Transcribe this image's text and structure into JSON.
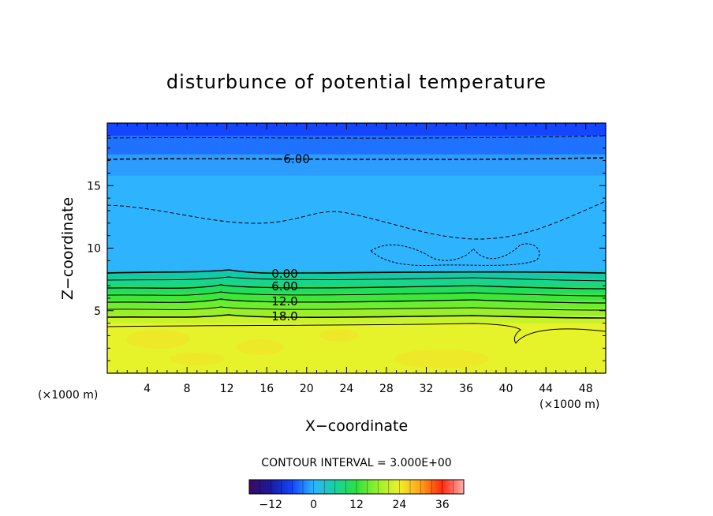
{
  "chart_data": {
    "type": "heatmap",
    "title": "disturbunce of potential temperature",
    "xlabel": "X−coordinate",
    "ylabel": "Z−coordinate",
    "x_unit_left": "(×1000 m)",
    "x_unit_right": "(×1000 m)",
    "xlim": [
      0,
      50
    ],
    "ylim": [
      0,
      20
    ],
    "x_ticks": [
      4,
      8,
      12,
      16,
      20,
      24,
      28,
      32,
      36,
      40,
      44,
      48
    ],
    "y_ticks": [
      5,
      10,
      15
    ],
    "contour_interval_text": "CONTOUR INTERVAL = 3.000E+00",
    "contour_interval": 3,
    "contour_labels": [
      {
        "text": "−6.00",
        "x": 18.5,
        "z": 17.2
      },
      {
        "text": "0.00",
        "x": 17.8,
        "z": 8.0
      },
      {
        "text": "6.00",
        "x": 17.8,
        "z": 7.0
      },
      {
        "text": "12.0",
        "x": 17.8,
        "z": 5.8
      },
      {
        "text": "18.0",
        "x": 17.8,
        "z": 4.6
      }
    ],
    "level_bands": [
      {
        "z_top": 20.0,
        "z_bottom": 19.0,
        "value": -18,
        "color": "#1446ff"
      },
      {
        "z_top": 19.0,
        "z_bottom": 17.5,
        "value": -12,
        "color": "#1e72ff"
      },
      {
        "z_top": 17.5,
        "z_bottom": 15.8,
        "value": -9,
        "color": "#2c9cff"
      },
      {
        "z_top": 15.8,
        "z_bottom": 8.2,
        "value": -6,
        "color": "#2eb4ff"
      },
      {
        "z_top": 8.2,
        "z_bottom": 7.6,
        "value": 0,
        "color": "#12c9a8"
      },
      {
        "z_top": 7.6,
        "z_bottom": 7.0,
        "value": 3,
        "color": "#19d48a"
      },
      {
        "z_top": 7.0,
        "z_bottom": 6.4,
        "value": 6,
        "color": "#22dc5c"
      },
      {
        "z_top": 6.4,
        "z_bottom": 5.8,
        "value": 9,
        "color": "#3ee63a"
      },
      {
        "z_top": 5.8,
        "z_bottom": 5.2,
        "value": 12,
        "color": "#6aee2e"
      },
      {
        "z_top": 5.2,
        "z_bottom": 4.6,
        "value": 15,
        "color": "#99f02a"
      },
      {
        "z_top": 4.6,
        "z_bottom": 4.0,
        "value": 18,
        "color": "#c8f32a"
      },
      {
        "z_top": 4.0,
        "z_bottom": 0.0,
        "value": 24,
        "color": "#e6f22a"
      }
    ],
    "colorbar": {
      "min": -18,
      "max": 42,
      "ticks": [
        -12,
        0,
        12,
        24,
        36
      ],
      "tick_labels": [
        "−12",
        "0",
        "12",
        "24",
        "36"
      ]
    }
  }
}
